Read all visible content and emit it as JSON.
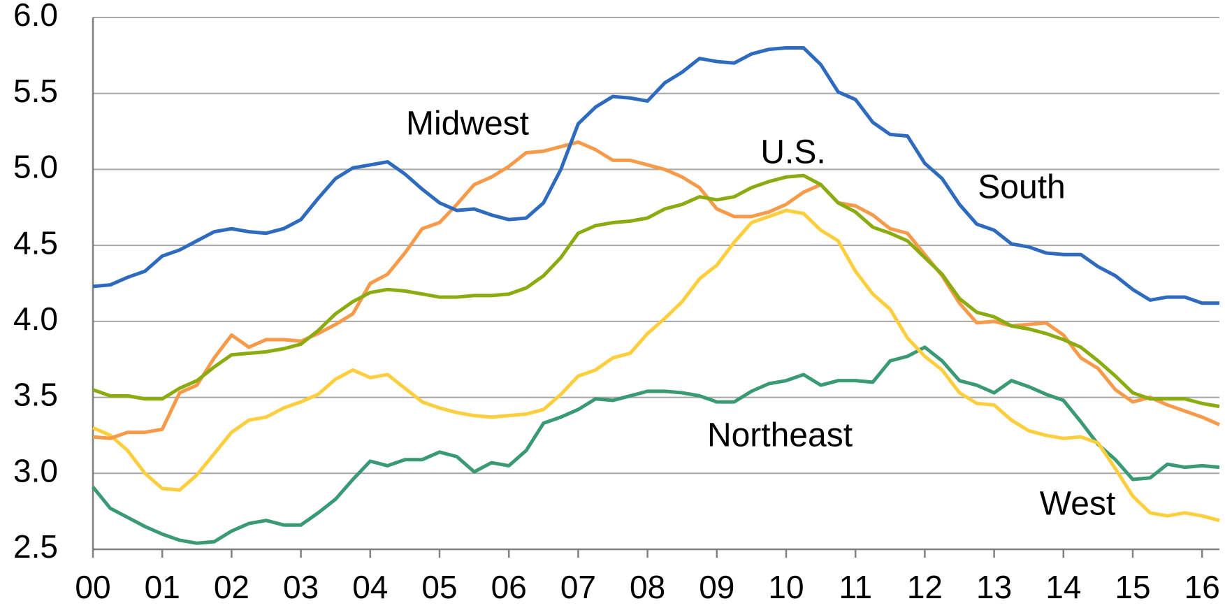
{
  "chart_data": {
    "type": "line",
    "x": [
      0,
      0.25,
      0.5,
      0.75,
      1,
      1.25,
      1.5,
      1.75,
      2,
      2.25,
      2.5,
      2.75,
      3,
      3.25,
      3.5,
      3.75,
      4,
      4.25,
      4.5,
      4.75,
      5,
      5.25,
      5.5,
      5.75,
      6,
      6.25,
      6.5,
      6.75,
      7,
      7.25,
      7.5,
      7.75,
      8,
      8.25,
      8.5,
      8.75,
      9,
      9.25,
      9.5,
      9.75,
      10,
      10.25,
      10.5,
      10.75,
      11,
      11.25,
      11.5,
      11.75,
      12,
      12.25,
      12.5,
      12.75,
      13,
      13.25,
      13.5,
      13.75,
      14,
      14.25,
      14.5,
      14.75,
      15,
      15.25,
      15.5,
      15.75,
      16,
      16.25
    ],
    "xlim": [
      0,
      16.25
    ],
    "xticks": [
      {
        "value": 0,
        "label": "00"
      },
      {
        "value": 1,
        "label": "01"
      },
      {
        "value": 2,
        "label": "02"
      },
      {
        "value": 3,
        "label": "03"
      },
      {
        "value": 4,
        "label": "04"
      },
      {
        "value": 5,
        "label": "05"
      },
      {
        "value": 6,
        "label": "06"
      },
      {
        "value": 7,
        "label": "07"
      },
      {
        "value": 8,
        "label": "08"
      },
      {
        "value": 9,
        "label": "09"
      },
      {
        "value": 10,
        "label": "10"
      },
      {
        "value": 11,
        "label": "11"
      },
      {
        "value": 12,
        "label": "12"
      },
      {
        "value": 13,
        "label": "13"
      },
      {
        "value": 14,
        "label": "14"
      },
      {
        "value": 15,
        "label": "15"
      },
      {
        "value": 16,
        "label": "16"
      }
    ],
    "ylim": [
      2.5,
      6.0
    ],
    "yticks": [
      {
        "value": 2.5,
        "label": "2.5"
      },
      {
        "value": 3.0,
        "label": "3.0"
      },
      {
        "value": 3.5,
        "label": "3.5"
      },
      {
        "value": 4.0,
        "label": "4.0"
      },
      {
        "value": 4.5,
        "label": "4.5"
      },
      {
        "value": 5.0,
        "label": "5.0"
      },
      {
        "value": 5.5,
        "label": "5.5"
      },
      {
        "value": 6.0,
        "label": "6.0"
      }
    ],
    "grid": true,
    "series": [
      {
        "name": "South",
        "color": "#2e6bbf",
        "values": [
          4.23,
          4.24,
          4.29,
          4.33,
          4.43,
          4.47,
          4.53,
          4.59,
          4.61,
          4.59,
          4.58,
          4.61,
          4.67,
          4.81,
          4.94,
          5.01,
          5.03,
          5.05,
          4.97,
          4.87,
          4.78,
          4.73,
          4.74,
          4.7,
          4.67,
          4.68,
          4.78,
          5.0,
          5.3,
          5.41,
          5.48,
          5.47,
          5.45,
          5.57,
          5.64,
          5.73,
          5.71,
          5.7,
          5.76,
          5.79,
          5.8,
          5.8,
          5.69,
          5.51,
          5.46,
          5.31,
          5.23,
          5.22,
          5.04,
          4.94,
          4.77,
          4.64,
          4.6,
          4.51,
          4.49,
          4.45,
          4.44,
          4.44,
          4.36,
          4.3,
          4.21,
          4.14,
          4.16,
          4.16,
          4.12,
          4.12
        ]
      },
      {
        "name": "Midwest",
        "color": "#f79a4a",
        "values": [
          3.24,
          3.23,
          3.27,
          3.27,
          3.29,
          3.53,
          3.58,
          3.76,
          3.91,
          3.83,
          3.88,
          3.88,
          3.87,
          3.92,
          3.98,
          4.05,
          4.25,
          4.31,
          4.45,
          4.61,
          4.65,
          4.77,
          4.9,
          4.95,
          5.02,
          5.11,
          5.12,
          5.15,
          5.18,
          5.13,
          5.06,
          5.06,
          5.03,
          5.0,
          4.95,
          4.88,
          4.74,
          4.69,
          4.69,
          4.72,
          4.77,
          4.85,
          4.9,
          4.78,
          4.76,
          4.7,
          4.61,
          4.58,
          4.44,
          4.3,
          4.12,
          3.99,
          4.0,
          3.97,
          3.98,
          3.99,
          3.91,
          3.76,
          3.69,
          3.55,
          3.47,
          3.5,
          3.45,
          3.41,
          3.37,
          3.32
        ]
      },
      {
        "name": "U.S.",
        "color": "#8aac10",
        "values": [
          3.55,
          3.51,
          3.51,
          3.49,
          3.49,
          3.56,
          3.61,
          3.7,
          3.78,
          3.79,
          3.8,
          3.82,
          3.85,
          3.94,
          4.05,
          4.13,
          4.19,
          4.21,
          4.2,
          4.18,
          4.16,
          4.16,
          4.17,
          4.17,
          4.18,
          4.22,
          4.3,
          4.42,
          4.58,
          4.63,
          4.65,
          4.66,
          4.68,
          4.74,
          4.77,
          4.82,
          4.8,
          4.82,
          4.88,
          4.92,
          4.95,
          4.96,
          4.9,
          4.78,
          4.72,
          4.62,
          4.58,
          4.53,
          4.42,
          4.31,
          4.15,
          4.06,
          4.03,
          3.97,
          3.95,
          3.92,
          3.88,
          3.83,
          3.74,
          3.64,
          3.53,
          3.49,
          3.49,
          3.49,
          3.46,
          3.44
        ]
      },
      {
        "name": "Northeast",
        "color": "#3a9a74",
        "values": [
          2.91,
          2.77,
          2.71,
          2.65,
          2.6,
          2.56,
          2.54,
          2.55,
          2.62,
          2.67,
          2.69,
          2.66,
          2.66,
          2.74,
          2.83,
          2.96,
          3.08,
          3.05,
          3.09,
          3.09,
          3.14,
          3.11,
          3.01,
          3.07,
          3.05,
          3.15,
          3.33,
          3.37,
          3.42,
          3.49,
          3.48,
          3.51,
          3.54,
          3.54,
          3.53,
          3.51,
          3.47,
          3.47,
          3.54,
          3.59,
          3.61,
          3.65,
          3.58,
          3.61,
          3.61,
          3.6,
          3.74,
          3.77,
          3.83,
          3.74,
          3.61,
          3.58,
          3.53,
          3.61,
          3.57,
          3.52,
          3.48,
          3.34,
          3.19,
          3.09,
          2.96,
          2.97,
          3.06,
          3.04,
          3.05,
          3.04
        ]
      },
      {
        "name": "West",
        "color": "#fdcf3e",
        "values": [
          3.3,
          3.25,
          3.15,
          3.0,
          2.9,
          2.89,
          2.99,
          3.13,
          3.27,
          3.35,
          3.37,
          3.43,
          3.47,
          3.52,
          3.62,
          3.68,
          3.63,
          3.65,
          3.56,
          3.47,
          3.43,
          3.4,
          3.38,
          3.37,
          3.38,
          3.39,
          3.42,
          3.52,
          3.64,
          3.68,
          3.76,
          3.79,
          3.92,
          4.02,
          4.13,
          4.28,
          4.37,
          4.52,
          4.65,
          4.69,
          4.73,
          4.71,
          4.6,
          4.53,
          4.33,
          4.18,
          4.08,
          3.89,
          3.77,
          3.68,
          3.53,
          3.46,
          3.45,
          3.35,
          3.28,
          3.25,
          3.23,
          3.24,
          3.2,
          3.03,
          2.85,
          2.74,
          2.72,
          2.74,
          2.72,
          2.69
        ]
      }
    ]
  }
}
